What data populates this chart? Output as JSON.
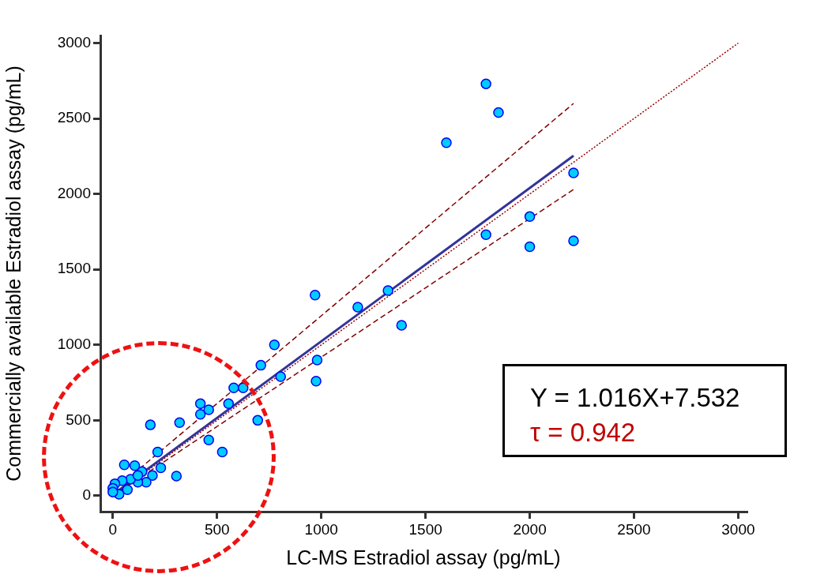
{
  "chart_data": {
    "type": "scatter",
    "xlabel": "LC-MS Estradiol assay (pg/mL)",
    "ylabel": "Commercially available Estradiol assay (pg/mL)",
    "xlim": [
      -60,
      3040
    ],
    "ylim": [
      -105,
      3050
    ],
    "xticks": [
      0,
      500,
      1000,
      1500,
      2000,
      2500,
      3000
    ],
    "yticks": [
      0,
      500,
      1000,
      1500,
      2000,
      2500,
      3000
    ],
    "grid": false,
    "legend": false,
    "annotations": [
      "Y = 1.016X+7.532",
      "τ = 0.942"
    ],
    "series": [
      {
        "type": "line",
        "color": "#990000",
        "line_style": "dotted",
        "x": [
          0,
          3000
        ],
        "values": [
          0,
          3000
        ]
      },
      {
        "type": "line",
        "color": "#800000",
        "line_style": "dashed",
        "x": [
          0,
          2210
        ],
        "values": [
          30,
          2600
        ]
      },
      {
        "type": "line",
        "color": "#800000",
        "line_style": "dashed",
        "x": [
          0,
          2210
        ],
        "values": [
          0,
          2030
        ]
      },
      {
        "type": "line",
        "color": "#333399",
        "line_style": "solid",
        "x": [
          0,
          2210
        ],
        "values": [
          8,
          2253
        ]
      },
      {
        "color": "#00ccff",
        "marker": "circle",
        "x": [
          1790,
          1850,
          1600,
          2210,
          2000,
          1790,
          2000,
          2210,
          970,
          1175,
          1320,
          1385,
          980,
          975,
          775,
          710,
          805,
          580,
          625,
          555,
          420,
          420,
          460,
          695,
          320,
          180,
          525,
          460,
          215,
          230,
          305,
          190,
          160,
          120,
          140,
          55,
          105,
          85,
          120,
          45,
          70,
          10,
          0,
          30,
          0
        ],
        "values": [
          2730,
          2540,
          2340,
          2140,
          1850,
          1730,
          1650,
          1690,
          1330,
          1250,
          1360,
          1130,
          900,
          760,
          1000,
          865,
          790,
          715,
          715,
          610,
          610,
          540,
          570,
          500,
          485,
          470,
          290,
          370,
          290,
          185,
          130,
          135,
          90,
          90,
          160,
          205,
          200,
          110,
          135,
          100,
          40,
          80,
          50,
          10,
          25
        ]
      }
    ]
  }
}
